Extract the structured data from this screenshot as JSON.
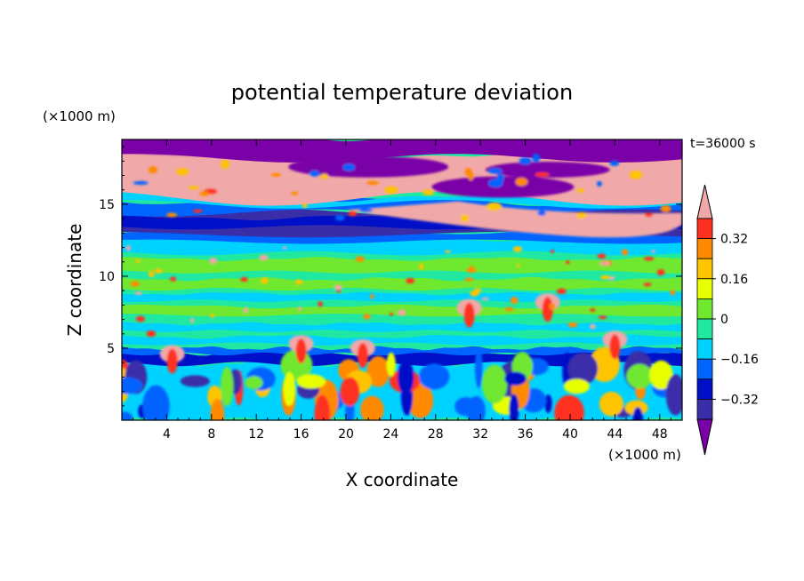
{
  "chart_data": {
    "type": "heatmap",
    "title": "potential temperature deviation",
    "xlabel": "X coordinate",
    "ylabel": "Z coordinate",
    "x_unit": "(×1000 m)",
    "y_unit": "(×1000 m)",
    "time_label": "t=36000 s",
    "xlim": [
      0,
      50
    ],
    "ylim": [
      0,
      19.5
    ],
    "x_ticks": [
      4,
      8,
      12,
      16,
      20,
      24,
      28,
      32,
      36,
      40,
      44,
      48
    ],
    "y_ticks": [
      5,
      10,
      15
    ],
    "colorbar": {
      "levels": [
        -0.48,
        -0.4,
        -0.32,
        -0.24,
        -0.16,
        -0.08,
        0,
        0.08,
        0.16,
        0.24,
        0.32,
        0.4
      ],
      "labeled_levels": [
        0.32,
        0.16,
        0,
        -0.16,
        -0.32
      ],
      "labels": [
        "0.32",
        "0.16",
        "0",
        "−0.16",
        "−0.32"
      ],
      "extend": "both",
      "colors": [
        "#7a00a8",
        "#3a2ea8",
        "#0010c8",
        "#0064ff",
        "#00d2ff",
        "#20e8a0",
        "#70e830",
        "#e8ff00",
        "#ffc400",
        "#ff8a00",
        "#ff3020",
        "#f0a8a8"
      ]
    },
    "layers": [
      {
        "z_range": [
          18.0,
          19.5
        ],
        "value": "≤ -0.48 / ≥ 0.40 mixed",
        "note": ""
      },
      {
        "z_range": [
          15.5,
          18.0
        ],
        "value": "≥ 0.40",
        "note": ""
      },
      {
        "z_range": [
          12.8,
          15.0
        ],
        "value": "-0.40 to -0.32",
        "note": ""
      },
      {
        "z_range": [
          5.0,
          12.0
        ],
        "value": "-0.08 to 0.08",
        "note": ""
      },
      {
        "z_range": [
          4.0,
          5.0
        ],
        "value": "-0.48 to -0.32",
        "note": ""
      },
      {
        "z_range": [
          0.0,
          4.0
        ],
        "value": "-0.32 to 0.40 mixed",
        "note": ""
      }
    ]
  }
}
